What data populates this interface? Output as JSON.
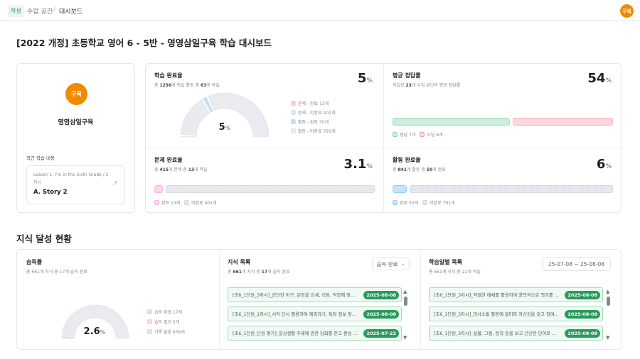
{
  "header": {
    "badge": "학생",
    "crumb1": "수업 공간",
    "sep": "/",
    "crumb2": "대시보드",
    "avatar": "구육"
  },
  "title": "[2022 개정] 초등학교 영어 6 - 5반 - 영영삼일구육 학습 대시보드",
  "profile": {
    "avatar": "구육",
    "name": "영영삼일구육",
    "recent_label": "최근 학습 내용",
    "lesson": "Lesson 1. I'm in the Sixth Grade / 2 차시",
    "item": "A. Story 2"
  },
  "study": {
    "title": "학습 완료율",
    "sub_pre": "총 ",
    "total": "1256",
    "sub_mid": "개 학습 활동 중 ",
    "done": "63",
    "sub_post": "개 학습",
    "value": "5",
    "unit": "%",
    "segments": [
      {
        "label": "문제 - 완료 13개",
        "count": 13,
        "color": "#f9c8ea",
        "style": "solid"
      },
      {
        "label": "문제 - 미완료 402개",
        "count": 402,
        "color": "#e6e8ec",
        "style": "hatch"
      },
      {
        "label": "활동 - 완료 50개",
        "count": 50,
        "color": "#bfe0fb",
        "style": "solid"
      },
      {
        "label": "활동 - 미완료 791개",
        "count": 791,
        "color": "#eceef2",
        "style": "grid"
      }
    ]
  },
  "accuracy": {
    "title": "평균 정답률",
    "sub_pre": "학습한 ",
    "n": "23",
    "sub_post": "개 수업 유닛의 평균 정답률",
    "value": "54",
    "unit": "%",
    "correct": 7,
    "wrong": 6,
    "correct_label": "정답 7개",
    "wrong_label": "오답 6개",
    "correct_color": "#cdeedd",
    "wrong_color": "#ffd6dc"
  },
  "problem": {
    "title": "문제 완료율",
    "sub_pre": "총 ",
    "total": "415",
    "sub_mid": "개 문제 중 ",
    "done": "13",
    "sub_post": "개 학습",
    "value": "3.1",
    "unit": "%",
    "done_label": "완료 13개",
    "todo_label": "미완료 402개"
  },
  "activity": {
    "title": "활동 완료율",
    "sub_pre": "총 ",
    "total": "841",
    "sub_mid": "개 활동 중 ",
    "done": "50",
    "sub_post": "개 완료",
    "value": "6",
    "unit": "%",
    "done_label": "완료 50개",
    "todo_label": "미완료 791개"
  },
  "section2": "지식 달성 현황",
  "mastery": {
    "title": "습득률",
    "sub": "총 661개 지식 중 17개 습득 완료",
    "value": "2.6",
    "unit": "%",
    "segments": [
      {
        "label": "습득 완료 17개",
        "count": 17,
        "color": "#cdeedd"
      },
      {
        "label": "습득 필요 5개",
        "count": 5,
        "color": "#ffd6dc"
      },
      {
        "label": "기록 없음 639개",
        "count": 639,
        "color": "#e6e8ec"
      }
    ]
  },
  "knowledge": {
    "title": "지식 목록",
    "sub_pre": "총 ",
    "total": "661",
    "sub_mid": "개 지식 중 ",
    "done": "17",
    "sub_post": "개 습득 완료",
    "filter": "습득 완료",
    "items": [
      {
        "text": "[초6_1단원_3차시]_간단한 어구, 문장을 강세, 리듬, 억양에 맞...",
        "date": "2025-08-08"
      },
      {
        "text": "[초6_1단원_1차시]_시각 단서 활용하여 예측하기, 특정 정보 찾...",
        "date": "2025-08-08"
      },
      {
        "text": "[초6_1단원_단원 평가]_일상생활 주제에 관한 담화를 듣고 중심 ...",
        "date": "2025-07-23"
      }
    ]
  },
  "daily": {
    "title": "학습일별 목록",
    "sub": "총 661개 지식 중 22개 학습",
    "range": "25-07-08 ~ 25-08-08",
    "items": [
      {
        "text": "[초6_1단원_3차시]_적절한 매체를 활용하여 창의적으로 의미를 ...",
        "date": "2025-08-08"
      },
      {
        "text": "[초6_1단원_3차시]_의사소통 활동에 흥미와 자신감을 갖고 참여...",
        "date": "2025-08-08"
      },
      {
        "text": "[초6_1단원_3차시]_실물, 그림, 동작 등을 보고 간단한 단어로 ...",
        "date": "2025-08-08"
      }
    ]
  }
}
